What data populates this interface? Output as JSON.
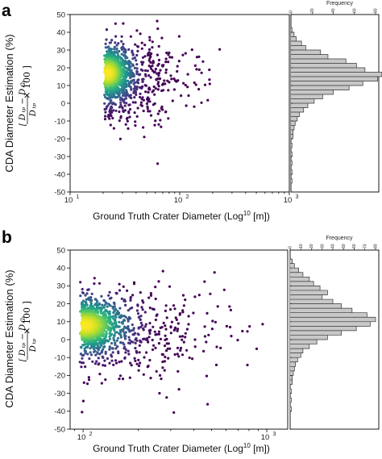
{
  "chart_data": [
    {
      "panel": "a",
      "type": "scatter",
      "xlabel_main": "Ground Truth Crater Diameter (Log",
      "xlabel_sup": "10",
      "xlabel_end": " [m])",
      "ylabel": "CDA Diameter Estimation (%)",
      "x_scale": "log",
      "xlim": [
        10,
        1000
      ],
      "ylim": [
        -50,
        50
      ],
      "x_ticks": [
        10,
        100,
        1000
      ],
      "x_tick_labels": [
        {
          "base": "10",
          "exp": "1"
        },
        {
          "base": "10",
          "exp": "2"
        },
        {
          "base": "10",
          "exp": "3"
        }
      ],
      "y_ticks": [
        50,
        40,
        30,
        20,
        10,
        0,
        -10,
        -20,
        -30,
        -40,
        -50
      ],
      "colormap": "viridis (density)",
      "density_center": {
        "x": 22,
        "y": 17
      },
      "point_count": 1350,
      "histogram": {
        "orientation": "horizontal",
        "xlabel": "Frequency",
        "ticks": [
          0,
          20,
          40,
          60,
          80
        ],
        "bins": [
          {
            "y": 40,
            "count": 1
          },
          {
            "y": 37.5,
            "count": 3
          },
          {
            "y": 35,
            "count": 5
          },
          {
            "y": 32.5,
            "count": 10
          },
          {
            "y": 30,
            "count": 14
          },
          {
            "y": 27.5,
            "count": 28
          },
          {
            "y": 25,
            "count": 35
          },
          {
            "y": 22.5,
            "count": 52
          },
          {
            "y": 20,
            "count": 62
          },
          {
            "y": 17.5,
            "count": 70
          },
          {
            "y": 15,
            "count": 86
          },
          {
            "y": 12.5,
            "count": 82
          },
          {
            "y": 10,
            "count": 68
          },
          {
            "y": 7.5,
            "count": 55
          },
          {
            "y": 5,
            "count": 40
          },
          {
            "y": 2.5,
            "count": 30
          },
          {
            "y": 0,
            "count": 22
          },
          {
            "y": -2.5,
            "count": 16
          },
          {
            "y": -5,
            "count": 12
          },
          {
            "y": -7.5,
            "count": 8
          },
          {
            "y": -10,
            "count": 6
          },
          {
            "y": -12.5,
            "count": 4
          },
          {
            "y": -15,
            "count": 3
          },
          {
            "y": -17.5,
            "count": 2
          },
          {
            "y": -20,
            "count": 2
          },
          {
            "y": -25,
            "count": 1
          },
          {
            "y": -30,
            "count": 1
          },
          {
            "y": -35,
            "count": 1
          },
          {
            "y": -40,
            "count": 1
          },
          {
            "y": -45,
            "count": 1
          }
        ],
        "bin_width": 2.5
      }
    },
    {
      "panel": "b",
      "type": "scatter",
      "xlabel_main": "Ground Truth Crater Diameter (Log",
      "xlabel_sup": "10",
      "xlabel_end": " [m])",
      "ylabel": "CDA Diameter Estimation (%)",
      "x_scale": "log",
      "xlim": [
        85,
        1300
      ],
      "ylim": [
        -50,
        50
      ],
      "x_ticks": [
        100,
        1000
      ],
      "x_tick_labels": [
        {
          "base": "10",
          "exp": "2"
        },
        {
          "base": "10",
          "exp": "3"
        }
      ],
      "y_ticks": [
        50,
        40,
        30,
        20,
        10,
        0,
        -10,
        -20,
        -30,
        -40,
        -50
      ],
      "colormap": "viridis (density)",
      "density_center": {
        "x": 103,
        "y": 8
      },
      "point_count": 1300,
      "histogram": {
        "orientation": "horizontal",
        "xlabel": "Frequency",
        "ticks": [
          0,
          10,
          20,
          30,
          40,
          50,
          60,
          70,
          80
        ],
        "bins": [
          {
            "y": 42.5,
            "count": 2
          },
          {
            "y": 40,
            "count": 4
          },
          {
            "y": 37.5,
            "count": 8
          },
          {
            "y": 35,
            "count": 12
          },
          {
            "y": 32.5,
            "count": 18
          },
          {
            "y": 30,
            "count": 22
          },
          {
            "y": 27.5,
            "count": 28
          },
          {
            "y": 25,
            "count": 35
          },
          {
            "y": 22.5,
            "count": 30
          },
          {
            "y": 20,
            "count": 40
          },
          {
            "y": 17.5,
            "count": 48
          },
          {
            "y": 15,
            "count": 58
          },
          {
            "y": 12.5,
            "count": 72
          },
          {
            "y": 10,
            "count": 80
          },
          {
            "y": 7.5,
            "count": 75
          },
          {
            "y": 5,
            "count": 62
          },
          {
            "y": 2.5,
            "count": 48
          },
          {
            "y": 0,
            "count": 35
          },
          {
            "y": -2.5,
            "count": 25
          },
          {
            "y": -5,
            "count": 18
          },
          {
            "y": -7.5,
            "count": 12
          },
          {
            "y": -10,
            "count": 10
          },
          {
            "y": -12.5,
            "count": 7
          },
          {
            "y": -15,
            "count": 5
          },
          {
            "y": -17.5,
            "count": 4
          },
          {
            "y": -20,
            "count": 3
          },
          {
            "y": -22.5,
            "count": 2
          },
          {
            "y": -25,
            "count": 2
          },
          {
            "y": -30,
            "count": 1
          },
          {
            "y": -35,
            "count": 1
          },
          {
            "y": -40,
            "count": 1
          }
        ],
        "bin_width": 2.5
      }
    }
  ],
  "colors": {
    "hist_fill": "#c8c8c8",
    "hist_stroke": "#333333",
    "axis": "#000000"
  }
}
